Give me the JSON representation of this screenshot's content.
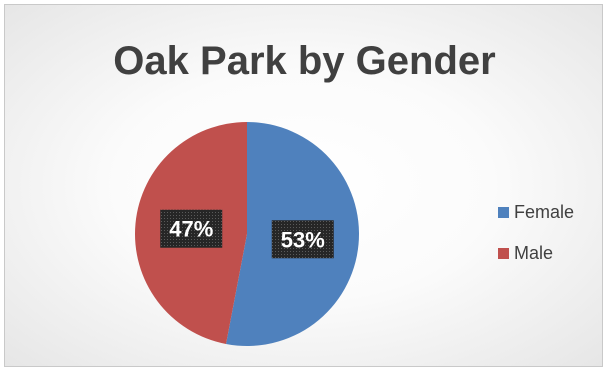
{
  "chart_data": {
    "type": "pie",
    "title": "Oak Park by Gender",
    "slices": [
      {
        "name": "Female",
        "value": 53,
        "label": "53%",
        "color": "#4f81bd"
      },
      {
        "name": "Male",
        "value": 47,
        "label": "47%",
        "color": "#c0504d"
      }
    ],
    "legend_placement": "right",
    "start_angle": "top, clockwise"
  }
}
